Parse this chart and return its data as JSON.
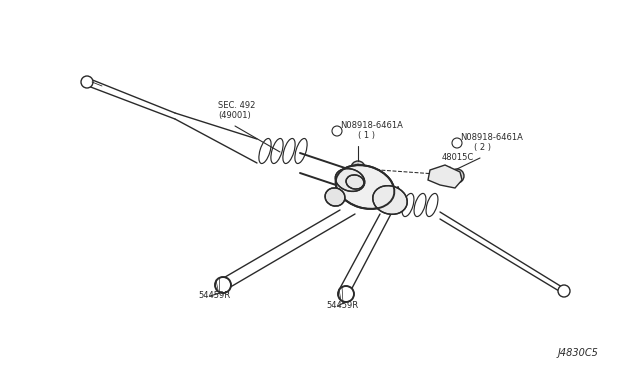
{
  "bg_color": "#ffffff",
  "line_color": "#2a2a2a",
  "diagram_ref": "J4830C5",
  "figsize": [
    6.4,
    3.72
  ],
  "dpi": 100,
  "labels": {
    "sec492_line1": "SEC. 492",
    "sec492_line2": "(49001)",
    "n1_line1": "N08918-6461A",
    "n1_line2": "( 1 )",
    "n2_line1": "N08918-6461A",
    "n2_line2": "( 2 )",
    "part48015c": "48015C",
    "54459r_l": "54459R",
    "54459r_b": "54459R"
  },
  "annotation_font": 6.0,
  "ref_font": 7.0
}
